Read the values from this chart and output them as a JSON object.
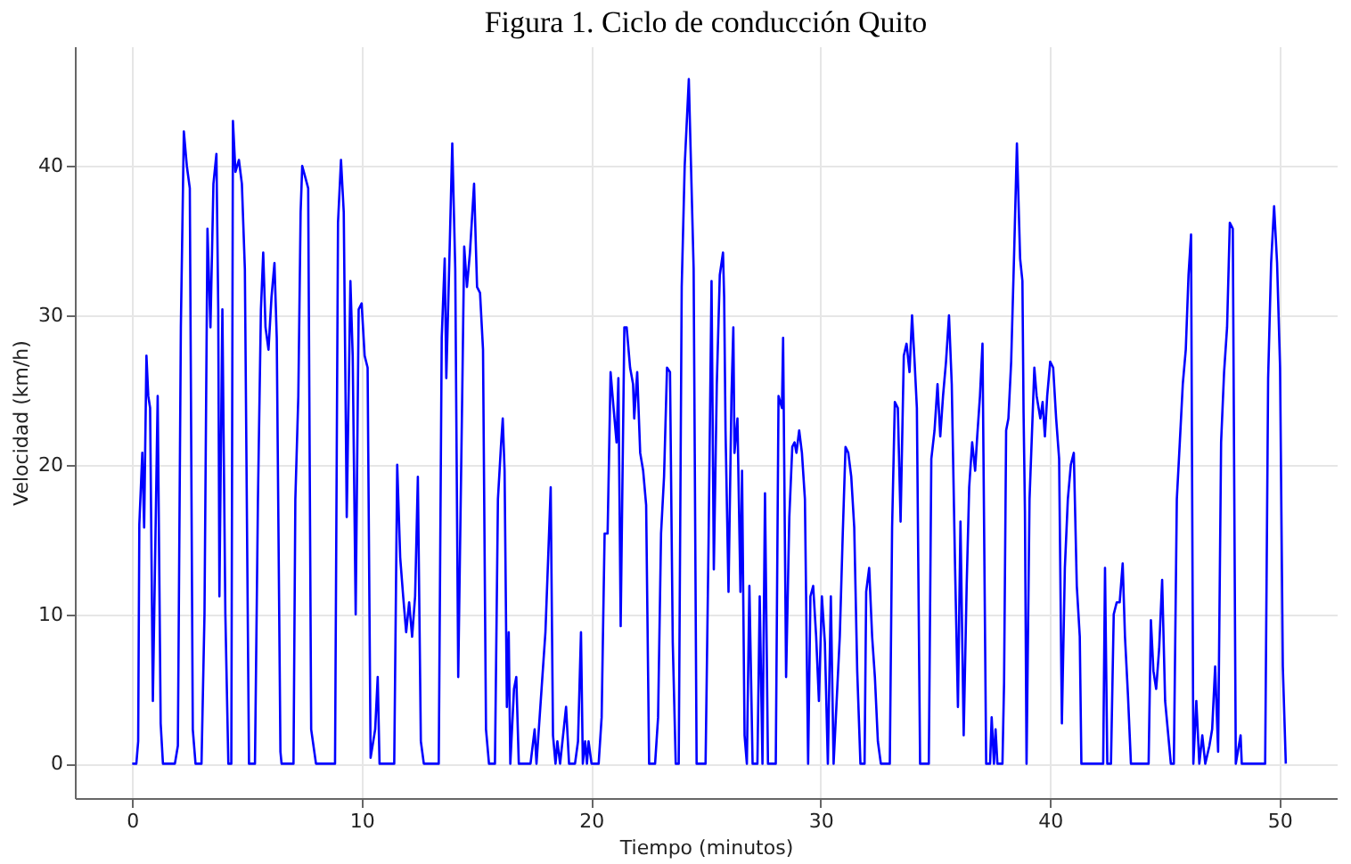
{
  "chart_data": {
    "type": "line",
    "title": "Figura 1. Ciclo de conducción Quito",
    "xlabel": "Tiempo (minutos)",
    "ylabel": "Velocidad (km/h)",
    "xlim": [
      -2.5,
      52.5
    ],
    "xticks": [
      0,
      10,
      20,
      30,
      40,
      50
    ],
    "ylim": [
      -2.3,
      48
    ],
    "yticks": [
      0,
      10,
      20,
      30,
      40
    ],
    "grid": true,
    "marker": "none",
    "line_style": "solid",
    "x": [
      0,
      0.18,
      0.26,
      0.31,
      0.44,
      0.52,
      0.62,
      0.7,
      0.78,
      0.9,
      1.11,
      1.24,
      1.34,
      1.86,
      1.99,
      2.12,
      2.25,
      2.38,
      2.51,
      2.64,
      2.76,
      3.02,
      3.15,
      3.28,
      3.41,
      3.54,
      3.67,
      3.75,
      3.8,
      3.93,
      4.06,
      4.19,
      4.32,
      4.39,
      4.5,
      4.65,
      4.78,
      4.91,
      5.09,
      5.35,
      5.48,
      5.61,
      5.71,
      5.81,
      5.94,
      6.07,
      6.2,
      6.3,
      6.46,
      6.51,
      7.03,
      7.11,
      7.24,
      7.34,
      7.41,
      7.55,
      7.67,
      7.8,
      8.01,
      8.84,
      8.97,
      9.1,
      9.22,
      9.35,
      9.51,
      9.61,
      9.74,
      9.87,
      10.0,
      10.13,
      10.26,
      10.39,
      10.59,
      10.7,
      10.78,
      11.42,
      11.55,
      11.68,
      11.81,
      11.94,
      12.07,
      12.2,
      12.33,
      12.45,
      12.58,
      12.71,
      13.36,
      13.49,
      13.62,
      13.69,
      13.82,
      13.95,
      14.08,
      14.21,
      14.39,
      14.47,
      14.59,
      14.72,
      14.9,
      15.03,
      15.16,
      15.29,
      15.42,
      15.55,
      15.81,
      15.94,
      16.07,
      16.15,
      16.23,
      16.33,
      16.41,
      16.48,
      16.64,
      16.74,
      16.85,
      17.36,
      17.54,
      17.62,
      18.01,
      18.13,
      18.24,
      18.34,
      18.45,
      18.53,
      18.65,
      18.91,
      19.04,
      19.3,
      19.43,
      19.56,
      19.64,
      19.74,
      19.82,
      19.89,
      20.02,
      20.33,
      20.46,
      20.59,
      20.72,
      20.85,
      20.98,
      21.11,
      21.19,
      21.29,
      21.45,
      21.55,
      21.7,
      21.83,
      21.88,
      22.01,
      22.14,
      22.27,
      22.4,
      22.53,
      22.79,
      22.92,
      23.05,
      23.18,
      23.31,
      23.44,
      23.56,
      23.69,
      23.82,
      23.95,
      24.08,
      24.26,
      24.47,
      24.6,
      24.99,
      25.12,
      25.25,
      25.35,
      25.48,
      25.61,
      25.75,
      25.8,
      25.86,
      25.99,
      26.12,
      26.2,
      26.25,
      26.38,
      26.51,
      26.58,
      26.69,
      26.79,
      26.9,
      27.04,
      27.25,
      27.35,
      27.47,
      27.58,
      27.71,
      28.05,
      28.17,
      28.32,
      28.37,
      28.5,
      28.64,
      28.77,
      28.87,
      28.95,
      29.07,
      29.19,
      29.32,
      29.46,
      29.56,
      29.68,
      29.81,
      29.93,
      30.06,
      30.19,
      30.32,
      30.45,
      30.57,
      30.84,
      30.97,
      31.09,
      31.21,
      31.34,
      31.47,
      31.6,
      31.74,
      31.92,
      31.99,
      32.12,
      32.25,
      32.37,
      32.5,
      32.63,
      33.02,
      33.12,
      33.24,
      33.37,
      33.49,
      33.63,
      33.75,
      33.88,
      33.99,
      34.1,
      34.2,
      34.34,
      34.72,
      34.83,
      34.97,
      35.1,
      35.22,
      35.34,
      35.47,
      35.6,
      35.72,
      35.86,
      35.99,
      36.1,
      36.24,
      36.37,
      36.48,
      36.61,
      36.74,
      36.83,
      36.95,
      37.06,
      37.22,
      37.39,
      37.46,
      37.56,
      37.63,
      37.71,
      37.93,
      38.0,
      38.09,
      38.19,
      38.31,
      38.44,
      38.56,
      38.7,
      38.8,
      38.85,
      38.91,
      38.98,
      39.11,
      39.24,
      39.32,
      39.42,
      39.58,
      39.68,
      39.78,
      39.88,
      40.01,
      40.14,
      40.27,
      40.4,
      40.52,
      40.65,
      40.78,
      40.91,
      41.04,
      41.17,
      41.3,
      41.37,
      42.32,
      42.4,
      42.5,
      42.66,
      42.78,
      42.91,
      43.04,
      43.17,
      43.27,
      43.4,
      43.53,
      44.3,
      44.4,
      44.51,
      44.63,
      44.76,
      44.89,
      45.02,
      45.27,
      45.4,
      45.53,
      45.66,
      45.79,
      45.92,
      46.04,
      46.15,
      46.25,
      46.38,
      46.51,
      46.64,
      46.77,
      46.95,
      47.07,
      47.2,
      47.33,
      47.46,
      47.59,
      47.72,
      47.84,
      47.97,
      48.1,
      48.31,
      48.36,
      49.38,
      49.51,
      49.64,
      49.77,
      49.9,
      50.03,
      50.15,
      50.28
    ],
    "series": [
      {
        "color": "#0000ff",
        "values": [
          0,
          0,
          1.5,
          16,
          20.8,
          15.8,
          27.3,
          24.6,
          23.8,
          4.2,
          24.6,
          2.7,
          0,
          0,
          1.2,
          29.2,
          42.3,
          40,
          38.5,
          2.3,
          0,
          0,
          10,
          35.8,
          29.2,
          38.8,
          40.8,
          30.4,
          11.2,
          30.4,
          10,
          0,
          0,
          43,
          39.6,
          40.4,
          38.8,
          33.1,
          0,
          0,
          17.7,
          30.4,
          34.2,
          29.2,
          27.7,
          31.2,
          33.5,
          28.5,
          0.8,
          0,
          0,
          17.7,
          24.6,
          36.9,
          40,
          39.2,
          38.5,
          2.3,
          0,
          0,
          36.2,
          40.4,
          36.9,
          16.5,
          32.3,
          27.3,
          10,
          30.4,
          30.8,
          27.3,
          26.5,
          0.4,
          2.3,
          5.8,
          0,
          0,
          20,
          13.8,
          11.2,
          8.8,
          10.8,
          8.5,
          11.2,
          19.2,
          1.5,
          0,
          0,
          28.5,
          33.8,
          25.8,
          33.5,
          41.5,
          33.1,
          5.8,
          25.4,
          34.6,
          31.9,
          34.2,
          38.8,
          31.9,
          31.5,
          27.7,
          2.3,
          0,
          0,
          17.7,
          21.2,
          23.1,
          19.6,
          3.8,
          8.8,
          0,
          5,
          5.8,
          0,
          0,
          2.3,
          0,
          8.8,
          13.8,
          18.5,
          1.9,
          0,
          1.5,
          0,
          3.8,
          0,
          0,
          1.5,
          8.8,
          0,
          1.5,
          0,
          1.5,
          0,
          0,
          3.1,
          15.4,
          15.4,
          26.2,
          23.8,
          21.5,
          25.8,
          9.2,
          29.2,
          29.2,
          26.5,
          25.4,
          23.1,
          26.2,
          20.8,
          19.6,
          17.3,
          0,
          0,
          3.1,
          15.4,
          19.2,
          26.5,
          26.2,
          8.1,
          0,
          0,
          31.9,
          40,
          45.8,
          33.1,
          0,
          0,
          14.8,
          32.3,
          13,
          25.4,
          32.7,
          34.2,
          31.2,
          22.3,
          11.5,
          24.6,
          29.2,
          20.8,
          23.1,
          11.5,
          19.6,
          1.9,
          0,
          11.9,
          0,
          0,
          11.2,
          0,
          18.1,
          0,
          0,
          24.6,
          23.8,
          28.5,
          5.8,
          16.5,
          21.2,
          21.5,
          20.8,
          22.3,
          20.8,
          17.7,
          0,
          11.2,
          11.9,
          8.5,
          4.2,
          11.2,
          8.1,
          0,
          11.2,
          0,
          8.5,
          15.4,
          21.2,
          20.8,
          19.2,
          15.8,
          6.2,
          0,
          0,
          11.5,
          13.1,
          8.5,
          5.8,
          1.5,
          0,
          0,
          15.8,
          24.2,
          23.8,
          16.2,
          27.3,
          28.1,
          26.2,
          30,
          26.9,
          23.8,
          0,
          0,
          20.4,
          22.3,
          25.4,
          21.9,
          24.6,
          26.9,
          30,
          25.4,
          13.5,
          3.8,
          16.2,
          1.9,
          11.9,
          18.5,
          21.5,
          19.6,
          21.9,
          24.6,
          28.1,
          0,
          0,
          3.1,
          0,
          2.3,
          0,
          0,
          5.4,
          22.3,
          23.1,
          26.9,
          34.2,
          41.5,
          33.8,
          32.3,
          23.5,
          16.9,
          0,
          17.7,
          23.1,
          26.5,
          24.6,
          23.1,
          24.2,
          21.9,
          24.6,
          26.9,
          26.5,
          23.1,
          20.4,
          2.7,
          13.1,
          17.7,
          20,
          20.8,
          11.9,
          8.5,
          0,
          0,
          13.1,
          0,
          0,
          10,
          10.8,
          10.8,
          13.4,
          8.5,
          4.6,
          0,
          0,
          9.6,
          6.2,
          5,
          7.7,
          12.3,
          4.2,
          0,
          0,
          17.7,
          21.5,
          25.4,
          27.7,
          32.7,
          35.4,
          0,
          4.2,
          0,
          1.9,
          0,
          1.2,
          2.3,
          6.5,
          0.8,
          21.5,
          26.2,
          29.2,
          36.2,
          35.8,
          0,
          1.9,
          0,
          0,
          25.8,
          33.5,
          37.3,
          33.5,
          26.5,
          6.5,
          0
        ]
      }
    ]
  }
}
